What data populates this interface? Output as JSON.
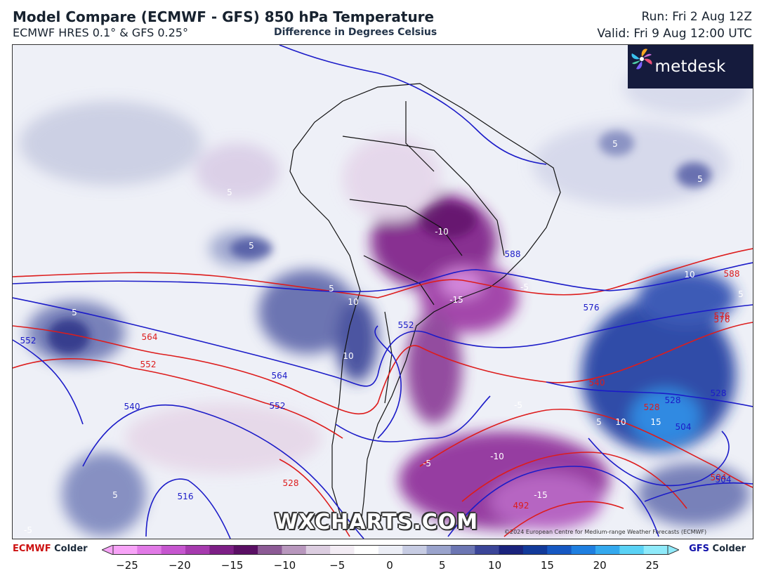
{
  "header": {
    "title": "Model Compare (ECMWF - GFS) 850 hPa Temperature",
    "subtitle": "ECMWF HRES 0.1° & GFS 0.25°",
    "difference_label": "Difference in Degrees Celsius",
    "run": "Run: Fri 2 Aug 12Z",
    "valid": "Valid: Fri 9 Aug 12:00 UTC"
  },
  "brand": {
    "name": "metdesk",
    "icon": "metdesk-pinwheel-icon"
  },
  "watermark": "WXCHARTS.COM",
  "copyright": "©2024 European Centre for Medium-range Weather Forecasts (ECMWF)",
  "contour_labels": {
    "temperature_diff": [
      "-10",
      "-15",
      "-5",
      "-10",
      "-15",
      "-5",
      "-5",
      "5",
      "5",
      "5",
      "5",
      "5",
      "10",
      "10",
      "10",
      "5",
      "10",
      "15",
      "5",
      "5",
      "5",
      "-5"
    ],
    "ecmwf_heights": [
      "564",
      "552",
      "528",
      "492",
      "504",
      "528",
      "540",
      "576",
      "588",
      "576"
    ],
    "gfs_heights": [
      "552",
      "540",
      "552",
      "564",
      "516",
      "528",
      "504",
      "504",
      "528",
      "576",
      "588",
      "552"
    ]
  },
  "legend": {
    "left_model": "ECMWF",
    "left_text": "Colder",
    "right_model": "GFS",
    "right_text": "Colder",
    "ticks": [
      "−25",
      "−20",
      "−15",
      "−10",
      "−5",
      "0",
      "5",
      "10",
      "15",
      "20",
      "25"
    ],
    "colors": [
      "#f7a3f7",
      "#e17ae6",
      "#c656cf",
      "#a63aae",
      "#7d1f86",
      "#5a0f64",
      "#8c5a95",
      "#b897bd",
      "#dccde0",
      "#f3ecf4",
      "#ffffff",
      "#eceef6",
      "#c7cce3",
      "#9aa3cc",
      "#6c76b3",
      "#3b4598",
      "#1a237d",
      "#123a9a",
      "#1658c2",
      "#1f7fe0",
      "#34a9ee",
      "#5ad2f5",
      "#8feafa"
    ]
  },
  "colors": {
    "ecmwf_contour": "#dd1c1c",
    "gfs_contour": "#1b1bc8",
    "land_border": "#111111"
  }
}
